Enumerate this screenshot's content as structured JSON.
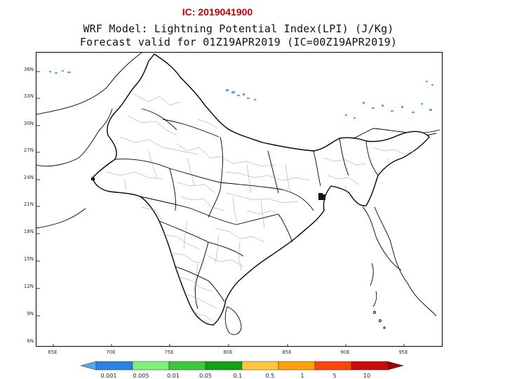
{
  "ic_label": "IC: 2019041900",
  "title_line1": "WRF Model: Lightning Potential Index(LPI) (J/Kg)",
  "title_line2": "Forecast valid for 01Z19APR2019 (IC=00Z19APR2019)",
  "lat_ticks": [
    "36N",
    "33N",
    "30N",
    "27N",
    "24N",
    "21N",
    "18N",
    "15N",
    "12N",
    "9N",
    "6N"
  ],
  "lon_ticks": [
    "65E",
    "70E",
    "75E",
    "80E",
    "85E",
    "90E",
    "95E"
  ],
  "colorbar": {
    "labels": [
      "0.001",
      "0.005",
      "0.01",
      "0.05",
      "0.1",
      "0.5",
      "1",
      "5",
      "10"
    ],
    "colors": [
      "#5aa6e6",
      "#2a82e6",
      "#7ef07a",
      "#3cc83c",
      "#14a014",
      "#ffc83c",
      "#ffa00a",
      "#ff460a",
      "#c80a0a",
      "#a00000"
    ]
  },
  "map": {
    "boundary_color": "#000000",
    "district_color": "#7a7a7a",
    "lpi_speckle_color": "#5aa6e6"
  }
}
